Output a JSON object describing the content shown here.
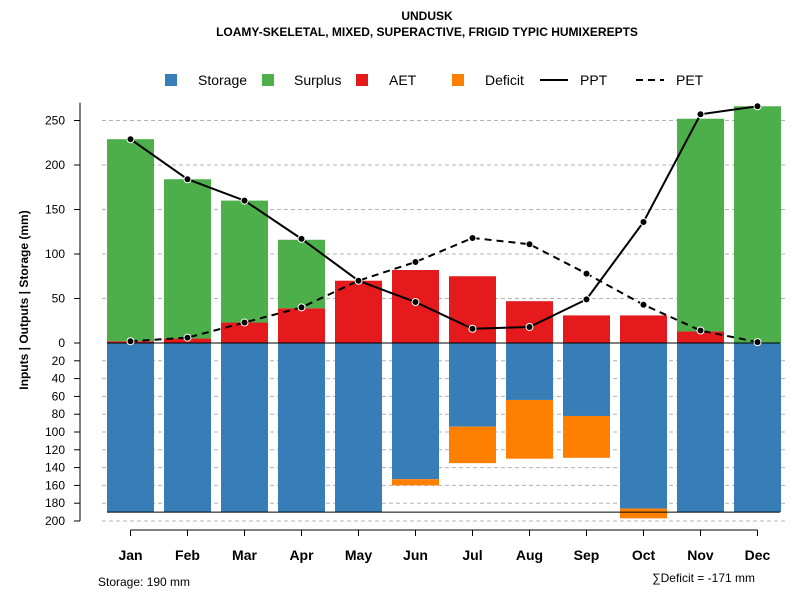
{
  "chart_data": {
    "type": "bar",
    "title": "UNDUSK",
    "subtitle": "LOAMY-SKELETAL, MIXED, SUPERACTIVE, FRIGID TYPIC HUMIXEREPTS",
    "ylabel": "Inputs | Outputs | Storage    (mm)",
    "categories": [
      "Jan",
      "Feb",
      "Mar",
      "Apr",
      "May",
      "Jun",
      "Jul",
      "Aug",
      "Sep",
      "Oct",
      "Nov",
      "Dec"
    ],
    "upper_ticks": [
      0,
      50,
      100,
      150,
      200,
      250
    ],
    "upper_tick_labels": [
      "0",
      "50",
      "100",
      "150",
      "200",
      "250"
    ],
    "lower_ticks": [
      20,
      40,
      60,
      80,
      100,
      120,
      140,
      160,
      180,
      200
    ],
    "lower_tick_labels": [
      "20",
      "40",
      "60",
      "80",
      "100",
      "120",
      "140",
      "160",
      "180",
      "200"
    ],
    "ylim_upper": [
      0,
      270
    ],
    "ylim_lower": [
      0,
      200
    ],
    "storage_capacity": 190,
    "series": [
      {
        "name": "Storage",
        "color": "#377EB8",
        "values": [
          190,
          190,
          190,
          190,
          190,
          153,
          94,
          64,
          82,
          186,
          190,
          190
        ]
      },
      {
        "name": "Surplus",
        "color": "#4DAF4A",
        "values": [
          227,
          179,
          137,
          77,
          0,
          0,
          0,
          0,
          0,
          0,
          239,
          266
        ]
      },
      {
        "name": "AET",
        "color": "#E41A1C",
        "values": [
          2,
          5,
          23,
          39,
          70,
          82,
          75,
          47,
          31,
          31,
          13,
          0
        ]
      },
      {
        "name": "Deficit",
        "color": "#FF7F00",
        "values": [
          0,
          0,
          0,
          0,
          0,
          7,
          41,
          66,
          47,
          11,
          0,
          0
        ]
      },
      {
        "name": "PPT",
        "color": "#000000",
        "style": "solid",
        "values": [
          229,
          184,
          160,
          117,
          70,
          46,
          16,
          18,
          49,
          136,
          257,
          266
        ]
      },
      {
        "name": "PET",
        "color": "#000000",
        "style": "dashed",
        "values": [
          2,
          6,
          23,
          40,
          70,
          91,
          118,
          111,
          78,
          43,
          14,
          1
        ]
      }
    ],
    "legend_position": "top",
    "grid": true,
    "footnote_storage": "Storage: 190 mm",
    "footnote_deficit": "∑Deficit = -171 mm"
  }
}
